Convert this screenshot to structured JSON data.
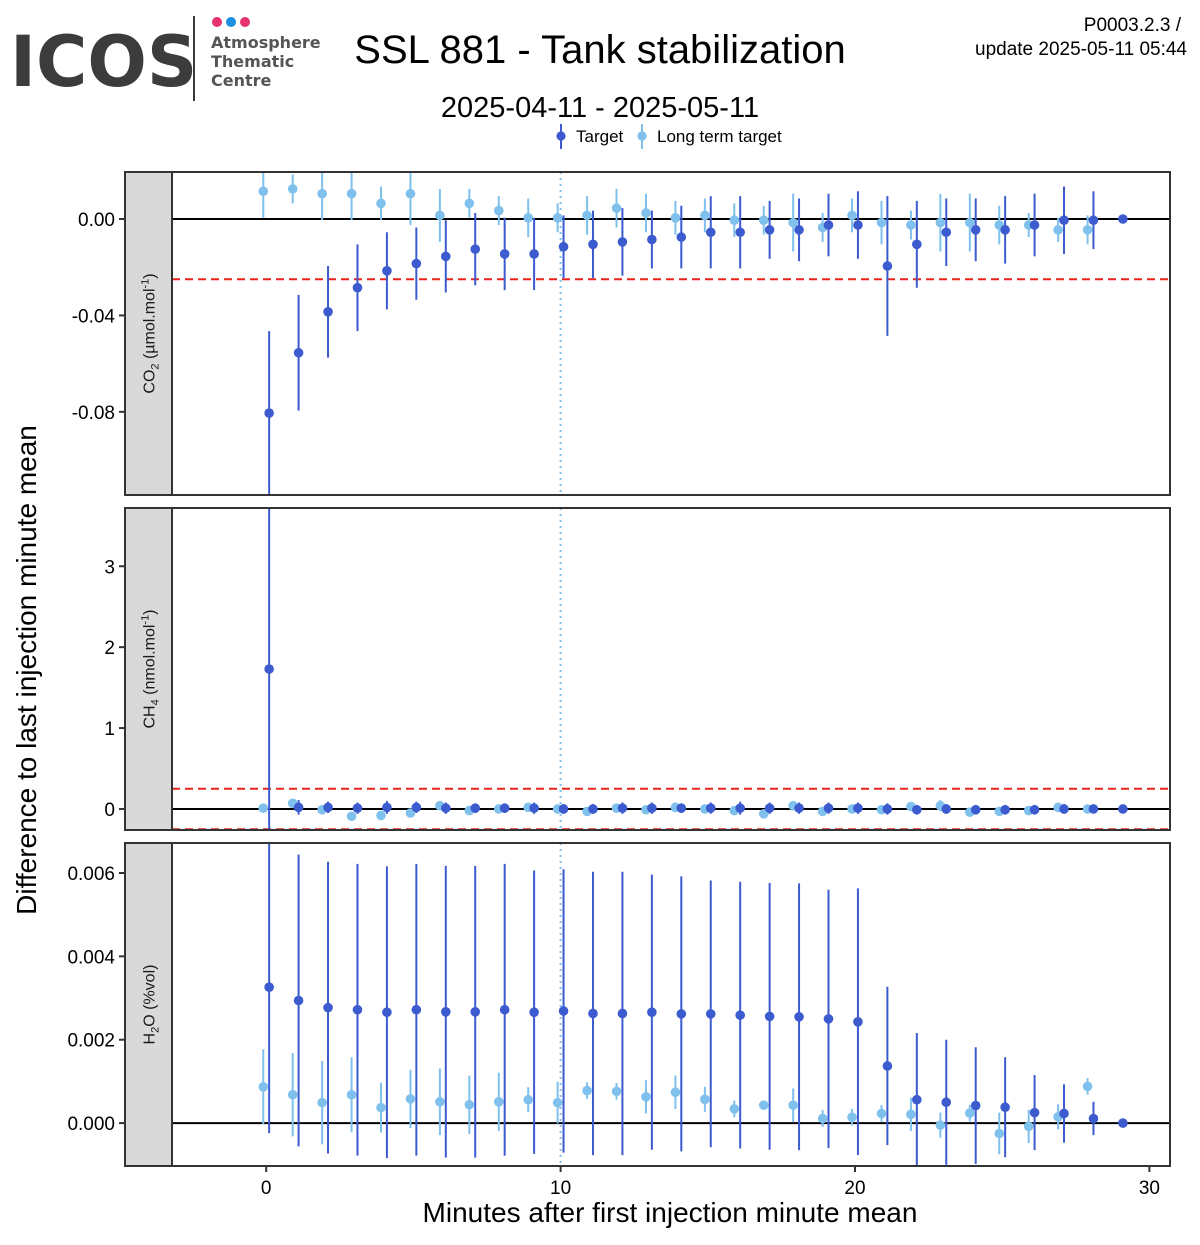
{
  "header": {
    "logo_text": "ICOS",
    "logo_sub": [
      "Atmosphere",
      "Thematic",
      "Centre"
    ],
    "title": "SSL 881 - Tank stabilization",
    "subtitle": "2025-04-11 - 2025-05-11",
    "meta_line1": "P0003.2.3 /",
    "meta_line2": "update  2025-05-11 05:44",
    "logo_dot_colors": [
      "#e6336e",
      "#1b8fe0",
      "#e6336e"
    ]
  },
  "chart_data": {
    "type": "scatter",
    "xlabel": "Minutes after first injection minute mean",
    "ylabel": "Difference to last injection minute mean",
    "xlim": [
      -3.2,
      30.7
    ],
    "xticks": [
      0,
      10,
      20,
      30
    ],
    "vline_x": 10,
    "legend": {
      "position": "top",
      "entries": [
        {
          "name": "Target",
          "color": "#3b5bcf"
        },
        {
          "name": "Long term target",
          "color": "#7fc0ec"
        }
      ]
    },
    "panels": [
      {
        "strip": {
          "pre": "CO",
          "sub": "2",
          "post": " (µmol.mol",
          "sup": "-1",
          "end": ")"
        },
        "ylim": [
          -0.1145,
          0.0195
        ],
        "yticks": [
          0.0,
          -0.04,
          -0.08
        ],
        "ytick_labels": [
          "0.00",
          "-0.04",
          "-0.08"
        ],
        "threshold": 0.025,
        "series": [
          {
            "name": "Target",
            "x": [
              0,
              1,
              2,
              3,
              4,
              5,
              6,
              7,
              8,
              9,
              10,
              11,
              12,
              13,
              14,
              15,
              16,
              17,
              18,
              19,
              20,
              21,
              22,
              23,
              24,
              25,
              26,
              27,
              28,
              29
            ],
            "y": [
              -0.0805,
              -0.0555,
              -0.0385,
              -0.0285,
              -0.0215,
              -0.0185,
              -0.0155,
              -0.0125,
              -0.0145,
              -0.0145,
              -0.0115,
              -0.0105,
              -0.0095,
              -0.0085,
              -0.0075,
              -0.0055,
              -0.0055,
              -0.0045,
              -0.0045,
              -0.0025,
              -0.0025,
              -0.0195,
              -0.0105,
              -0.0055,
              -0.0045,
              -0.0045,
              -0.0025,
              -0.0005,
              -0.0005,
              0.0
            ],
            "err": [
              0.034,
              0.024,
              0.019,
              0.018,
              0.016,
              0.015,
              0.015,
              0.015,
              0.015,
              0.015,
              0.013,
              0.014,
              0.014,
              0.012,
              0.013,
              0.015,
              0.015,
              0.012,
              0.013,
              0.013,
              0.014,
              0.029,
              0.018,
              0.014,
              0.013,
              0.014,
              0.013,
              0.014,
              0.012,
              0.001
            ]
          },
          {
            "name": "Long term target",
            "x": [
              0,
              1,
              2,
              3,
              4,
              5,
              6,
              7,
              8,
              9,
              10,
              11,
              12,
              13,
              14,
              15,
              16,
              17,
              18,
              19,
              20,
              21,
              22,
              23,
              24,
              25,
              26,
              27,
              28
            ],
            "y": [
              0.0115,
              0.0125,
              0.0105,
              0.0105,
              0.0065,
              0.0105,
              0.0015,
              0.0065,
              0.0035,
              0.0005,
              0.0005,
              0.0015,
              0.0045,
              0.0025,
              0.0005,
              0.0015,
              -0.0005,
              -0.0005,
              -0.0015,
              -0.0035,
              0.0015,
              -0.0015,
              -0.0025,
              -0.0015,
              -0.0015,
              -0.0025,
              -0.0025,
              -0.0045,
              -0.0045
            ],
            "err": [
              0.011,
              0.006,
              0.011,
              0.011,
              0.007,
              0.013,
              0.011,
              0.006,
              0.006,
              0.008,
              0.006,
              0.008,
              0.008,
              0.008,
              0.007,
              0.007,
              0.007,
              0.006,
              0.012,
              0.006,
              0.007,
              0.009,
              0.006,
              0.012,
              0.012,
              0.008,
              0.005,
              0.005,
              0.006
            ],
            "x_offset": 0
          }
        ]
      },
      {
        "strip": {
          "pre": "CH",
          "sub": "4",
          "post": " (nmol.mol",
          "sup": "-1",
          "end": ")"
        },
        "ylim": [
          -0.26,
          3.72
        ],
        "yticks": [
          0,
          1,
          2,
          3
        ],
        "ytick_labels": [
          "0",
          "1",
          "2",
          "3"
        ],
        "threshold": 0.25,
        "series": [
          {
            "name": "Target",
            "x": [
              0,
              1,
              2,
              3,
              4,
              5,
              6,
              7,
              8,
              9,
              10,
              11,
              12,
              13,
              14,
              15,
              16,
              17,
              18,
              19,
              20,
              21,
              22,
              23,
              24,
              25,
              26,
              27,
              28,
              29
            ],
            "y": [
              1.73,
              0.02,
              0.02,
              0.01,
              0.02,
              0.02,
              0.01,
              0.01,
              0.01,
              0.01,
              0.0,
              0.0,
              0.01,
              0.01,
              0.01,
              0.01,
              0.01,
              0.01,
              0.01,
              0.01,
              0.01,
              0.0,
              -0.01,
              0.0,
              -0.01,
              -0.01,
              -0.01,
              0.0,
              0.0,
              0.0
            ],
            "err": [
              2.0,
              0.09,
              0.07,
              0.07,
              0.08,
              0.07,
              0.07,
              0.06,
              0.06,
              0.07,
              0.06,
              0.06,
              0.07,
              0.07,
              0.06,
              0.07,
              0.08,
              0.07,
              0.07,
              0.07,
              0.07,
              0.07,
              0.06,
              0.06,
              0.06,
              0.06,
              0.06,
              0.06,
              0.05,
              0.02
            ]
          },
          {
            "name": "Long term target",
            "x": [
              0,
              1,
              2,
              3,
              4,
              5,
              6,
              7,
              8,
              9,
              10,
              11,
              12,
              13,
              14,
              15,
              16,
              17,
              18,
              19,
              20,
              21,
              22,
              23,
              24,
              25,
              26,
              27,
              28
            ],
            "y": [
              0.01,
              0.07,
              -0.01,
              -0.09,
              -0.08,
              -0.05,
              0.04,
              -0.02,
              0.0,
              0.02,
              0.0,
              -0.03,
              0.01,
              -0.01,
              0.02,
              0.0,
              -0.02,
              -0.06,
              0.04,
              -0.03,
              0.0,
              -0.01,
              0.03,
              0.04,
              -0.04,
              -0.03,
              -0.02,
              0.02,
              0.0
            ],
            "err": [
              0.05,
              0.04,
              0.04,
              0.03,
              0.03,
              0.03,
              0.04,
              0.04,
              0.03,
              0.03,
              0.04,
              0.04,
              0.04,
              0.05,
              0.06,
              0.04,
              0.04,
              0.03,
              0.04,
              0.04,
              0.05,
              0.04,
              0.05,
              0.07,
              0.04,
              0.04,
              0.04,
              0.04,
              0.03
            ]
          }
        ]
      },
      {
        "strip": {
          "pre": "H",
          "sub": "2",
          "post": "O (%vol)",
          "sup": "",
          "end": ""
        },
        "ylim": [
          -0.00103,
          0.00672
        ],
        "yticks": [
          0.0,
          0.002,
          0.004,
          0.006
        ],
        "ytick_labels": [
          "0.000",
          "0.002",
          "0.004",
          "0.006"
        ],
        "threshold": null,
        "series": [
          {
            "name": "Target",
            "x": [
              0,
              1,
              2,
              3,
              4,
              5,
              6,
              7,
              8,
              9,
              10,
              11,
              12,
              13,
              14,
              15,
              16,
              17,
              18,
              19,
              20,
              21,
              22,
              23,
              24,
              25,
              26,
              27,
              28,
              29
            ],
            "y": [
              0.00326,
              0.00294,
              0.00277,
              0.00272,
              0.00266,
              0.00272,
              0.00267,
              0.00267,
              0.00272,
              0.00266,
              0.00269,
              0.00263,
              0.00263,
              0.00266,
              0.00262,
              0.00262,
              0.00259,
              0.00256,
              0.00255,
              0.0025,
              0.00243,
              0.00137,
              0.00056,
              0.0005,
              0.00042,
              0.00038,
              0.00025,
              0.00023,
              0.00011,
              0.0
            ],
            "err": [
              0.0035,
              0.0035,
              0.0035,
              0.0035,
              0.0035,
              0.0035,
              0.0035,
              0.0035,
              0.0035,
              0.0034,
              0.0034,
              0.0034,
              0.0034,
              0.0033,
              0.0033,
              0.0032,
              0.0032,
              0.0032,
              0.0032,
              0.0031,
              0.0032,
              0.0019,
              0.0016,
              0.0015,
              0.0014,
              0.0012,
              0.0009,
              0.0007,
              0.0004,
              3e-05
            ]
          },
          {
            "name": "Long term target",
            "x": [
              0,
              1,
              2,
              3,
              4,
              5,
              6,
              7,
              8,
              9,
              10,
              11,
              12,
              13,
              14,
              15,
              16,
              17,
              18,
              19,
              20,
              21,
              22,
              23,
              24,
              25,
              26,
              27,
              28
            ],
            "y": [
              0.00087,
              0.00068,
              0.00049,
              0.00068,
              0.00037,
              0.00058,
              0.00051,
              0.00044,
              0.00051,
              0.00056,
              0.00049,
              0.00078,
              0.00076,
              0.00063,
              0.00074,
              0.00057,
              0.00034,
              0.00043,
              0.00043,
              0.00011,
              0.00014,
              0.00023,
              0.00021,
              -5e-05,
              0.00024,
              -0.00025,
              -8e-05,
              0.00015,
              0.00088
            ],
            "err": [
              0.0009,
              0.001,
              0.001,
              0.0009,
              0.0006,
              0.0007,
              0.0008,
              0.0007,
              0.0007,
              0.0003,
              0.0005,
              0.0002,
              0.0002,
              0.0004,
              0.0004,
              0.0003,
              0.0002,
              0.0001,
              0.0004,
              0.0002,
              0.0002,
              0.0002,
              0.0004,
              0.0003,
              0.0002,
              0.0005,
              0.0004,
              0.0003,
              0.0002
            ]
          }
        ]
      }
    ]
  }
}
